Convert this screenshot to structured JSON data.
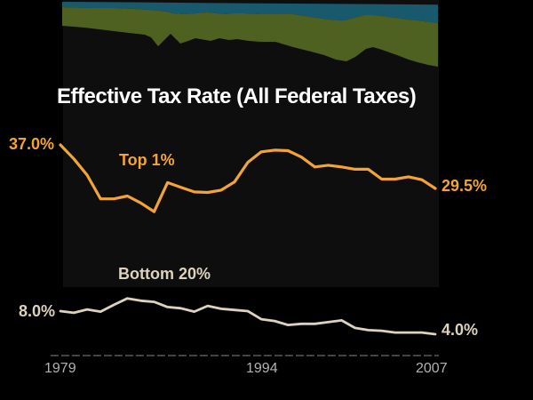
{
  "title": "Effective Tax Rate (All Federal Taxes)",
  "colors": {
    "background": "#000000",
    "plot_background": "#0E0E0E",
    "teal_band": "#19596E",
    "olive_band": "#4E6121",
    "top1_line": "#F2A437",
    "bottom20_line": "#DCD2BE",
    "title_text": "#FFFFFF",
    "axis_text": "#B2B2B2",
    "axis_line": "#5A5A5A"
  },
  "chart_data": {
    "type": "line",
    "title": "Effective Tax Rate (All Federal Taxes)",
    "xlabel": "",
    "ylabel": "",
    "x_range": [
      1979,
      2007
    ],
    "x_ticks": [
      "1979",
      "1994",
      "2007"
    ],
    "grid": false,
    "legend": "inline-labels",
    "x": [
      1979,
      1980,
      1981,
      1982,
      1983,
      1984,
      1985,
      1986,
      1987,
      1988,
      1989,
      1990,
      1991,
      1992,
      1993,
      1994,
      1995,
      1996,
      1997,
      1998,
      1999,
      2000,
      2001,
      2002,
      2003,
      2004,
      2005,
      2006,
      2007
    ],
    "series": [
      {
        "name": "Top 1%",
        "start_label": "37.0%",
        "end_label": "29.5%",
        "values": [
          37.0,
          34.6,
          31.8,
          27.7,
          27.7,
          28.2,
          27.0,
          25.5,
          30.5,
          29.7,
          28.9,
          28.8,
          29.2,
          30.6,
          34.0,
          35.8,
          36.1,
          36.0,
          34.9,
          33.2,
          33.5,
          33.2,
          32.8,
          32.8,
          31.1,
          31.1,
          31.5,
          31.0,
          29.5
        ]
      },
      {
        "name": "Bottom 20%",
        "start_label": "8.0%",
        "end_label": "4.0%",
        "values": [
          8.0,
          7.7,
          8.3,
          7.9,
          9.1,
          10.2,
          9.8,
          9.6,
          8.7,
          8.5,
          7.9,
          8.9,
          8.4,
          8.2,
          8.0,
          6.6,
          6.3,
          5.6,
          5.8,
          5.8,
          6.1,
          6.4,
          5.1,
          4.7,
          4.6,
          4.3,
          4.3,
          4.3,
          4.0
        ]
      }
    ]
  }
}
